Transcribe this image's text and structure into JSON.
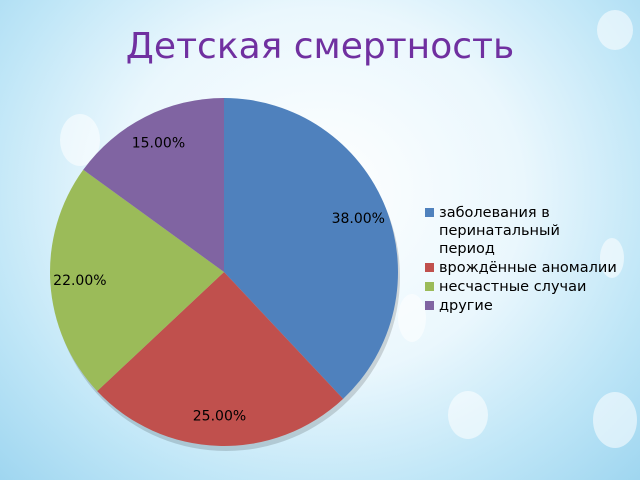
{
  "chart_data": {
    "type": "pie",
    "title": "Детская смертность",
    "categories": [
      "заболевания в перинатальный период",
      "врождённые аномалии",
      "несчастные случаи",
      "другие"
    ],
    "values": [
      38,
      25,
      22,
      15
    ],
    "value_labels": [
      "38.00%",
      "25.00%",
      "22.00%",
      "15.00%"
    ],
    "colors": [
      "#4f81bd",
      "#c0504d",
      "#9bbb59",
      "#8064a2"
    ],
    "legend": "right"
  }
}
